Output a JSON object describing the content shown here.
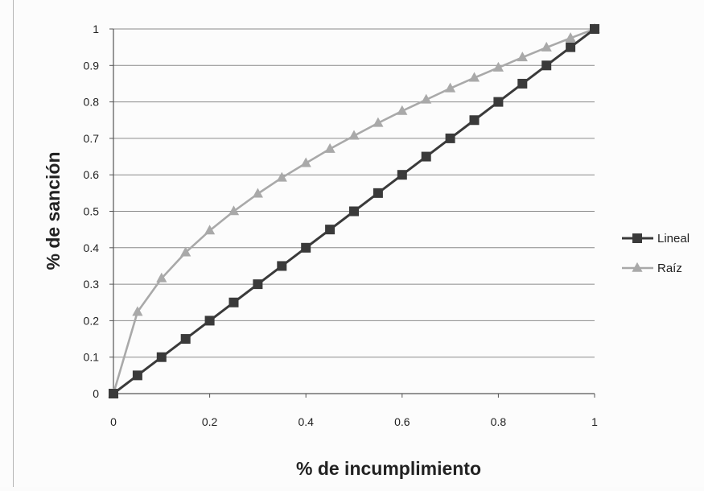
{
  "chart_data": {
    "type": "line",
    "title": "",
    "xlabel": "% de incumplimiento",
    "ylabel": "% de sanción",
    "xlim": [
      0,
      1
    ],
    "ylim": [
      0,
      1
    ],
    "x_ticks": [
      "0",
      "0.2",
      "0.4",
      "0.6",
      "0.8",
      "1"
    ],
    "y_ticks": [
      "0",
      "0.1",
      "0.2",
      "0.3",
      "0.4",
      "0.5",
      "0.6",
      "0.7",
      "0.8",
      "0.9",
      "1"
    ],
    "grid": true,
    "legend_position": "right",
    "x": [
      0,
      0.05,
      0.1,
      0.15,
      0.2,
      0.25,
      0.3,
      0.35,
      0.4,
      0.45,
      0.5,
      0.55,
      0.6,
      0.65,
      0.7,
      0.75,
      0.8,
      0.85,
      0.9,
      0.95,
      1
    ],
    "series": [
      {
        "name": "Lineal",
        "color": "#3a3a3a",
        "marker": "square",
        "values": [
          0,
          0.05,
          0.1,
          0.15,
          0.2,
          0.25,
          0.3,
          0.35,
          0.4,
          0.45,
          0.5,
          0.55,
          0.6,
          0.65,
          0.7,
          0.75,
          0.8,
          0.85,
          0.9,
          0.95,
          1
        ]
      },
      {
        "name": "Raíz",
        "color": "#a9a9a9",
        "marker": "triangle",
        "values": [
          0,
          0.224,
          0.316,
          0.387,
          0.447,
          0.5,
          0.548,
          0.592,
          0.632,
          0.671,
          0.707,
          0.742,
          0.775,
          0.806,
          0.837,
          0.866,
          0.894,
          0.922,
          0.949,
          0.975,
          1
        ]
      }
    ]
  }
}
